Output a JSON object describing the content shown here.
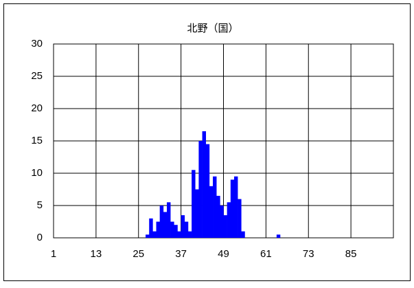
{
  "chart_data": {
    "type": "bar",
    "title": "北野（国）",
    "x": [
      27,
      28,
      29,
      30,
      31,
      32,
      33,
      34,
      35,
      36,
      37,
      38,
      39,
      40,
      41,
      42,
      43,
      44,
      45,
      46,
      47,
      48,
      49,
      50,
      51,
      52,
      53,
      54,
      64
    ],
    "values": [
      0.5,
      3,
      1,
      2.5,
      5,
      4,
      5.5,
      2.5,
      2,
      1,
      3.5,
      2.5,
      1,
      10.5,
      7.5,
      15,
      16.5,
      14.5,
      8,
      9.5,
      6.5,
      5,
      3.5,
      5.5,
      9,
      9.5,
      6,
      1,
      0.5
    ],
    "color": "#0000ff",
    "xlim": [
      1,
      97
    ],
    "xticks": [
      1,
      13,
      25,
      37,
      49,
      61,
      73,
      85
    ],
    "ylim": [
      0,
      30
    ],
    "yticks": [
      0,
      5,
      10,
      15,
      20,
      25,
      30
    ],
    "grid": true
  }
}
